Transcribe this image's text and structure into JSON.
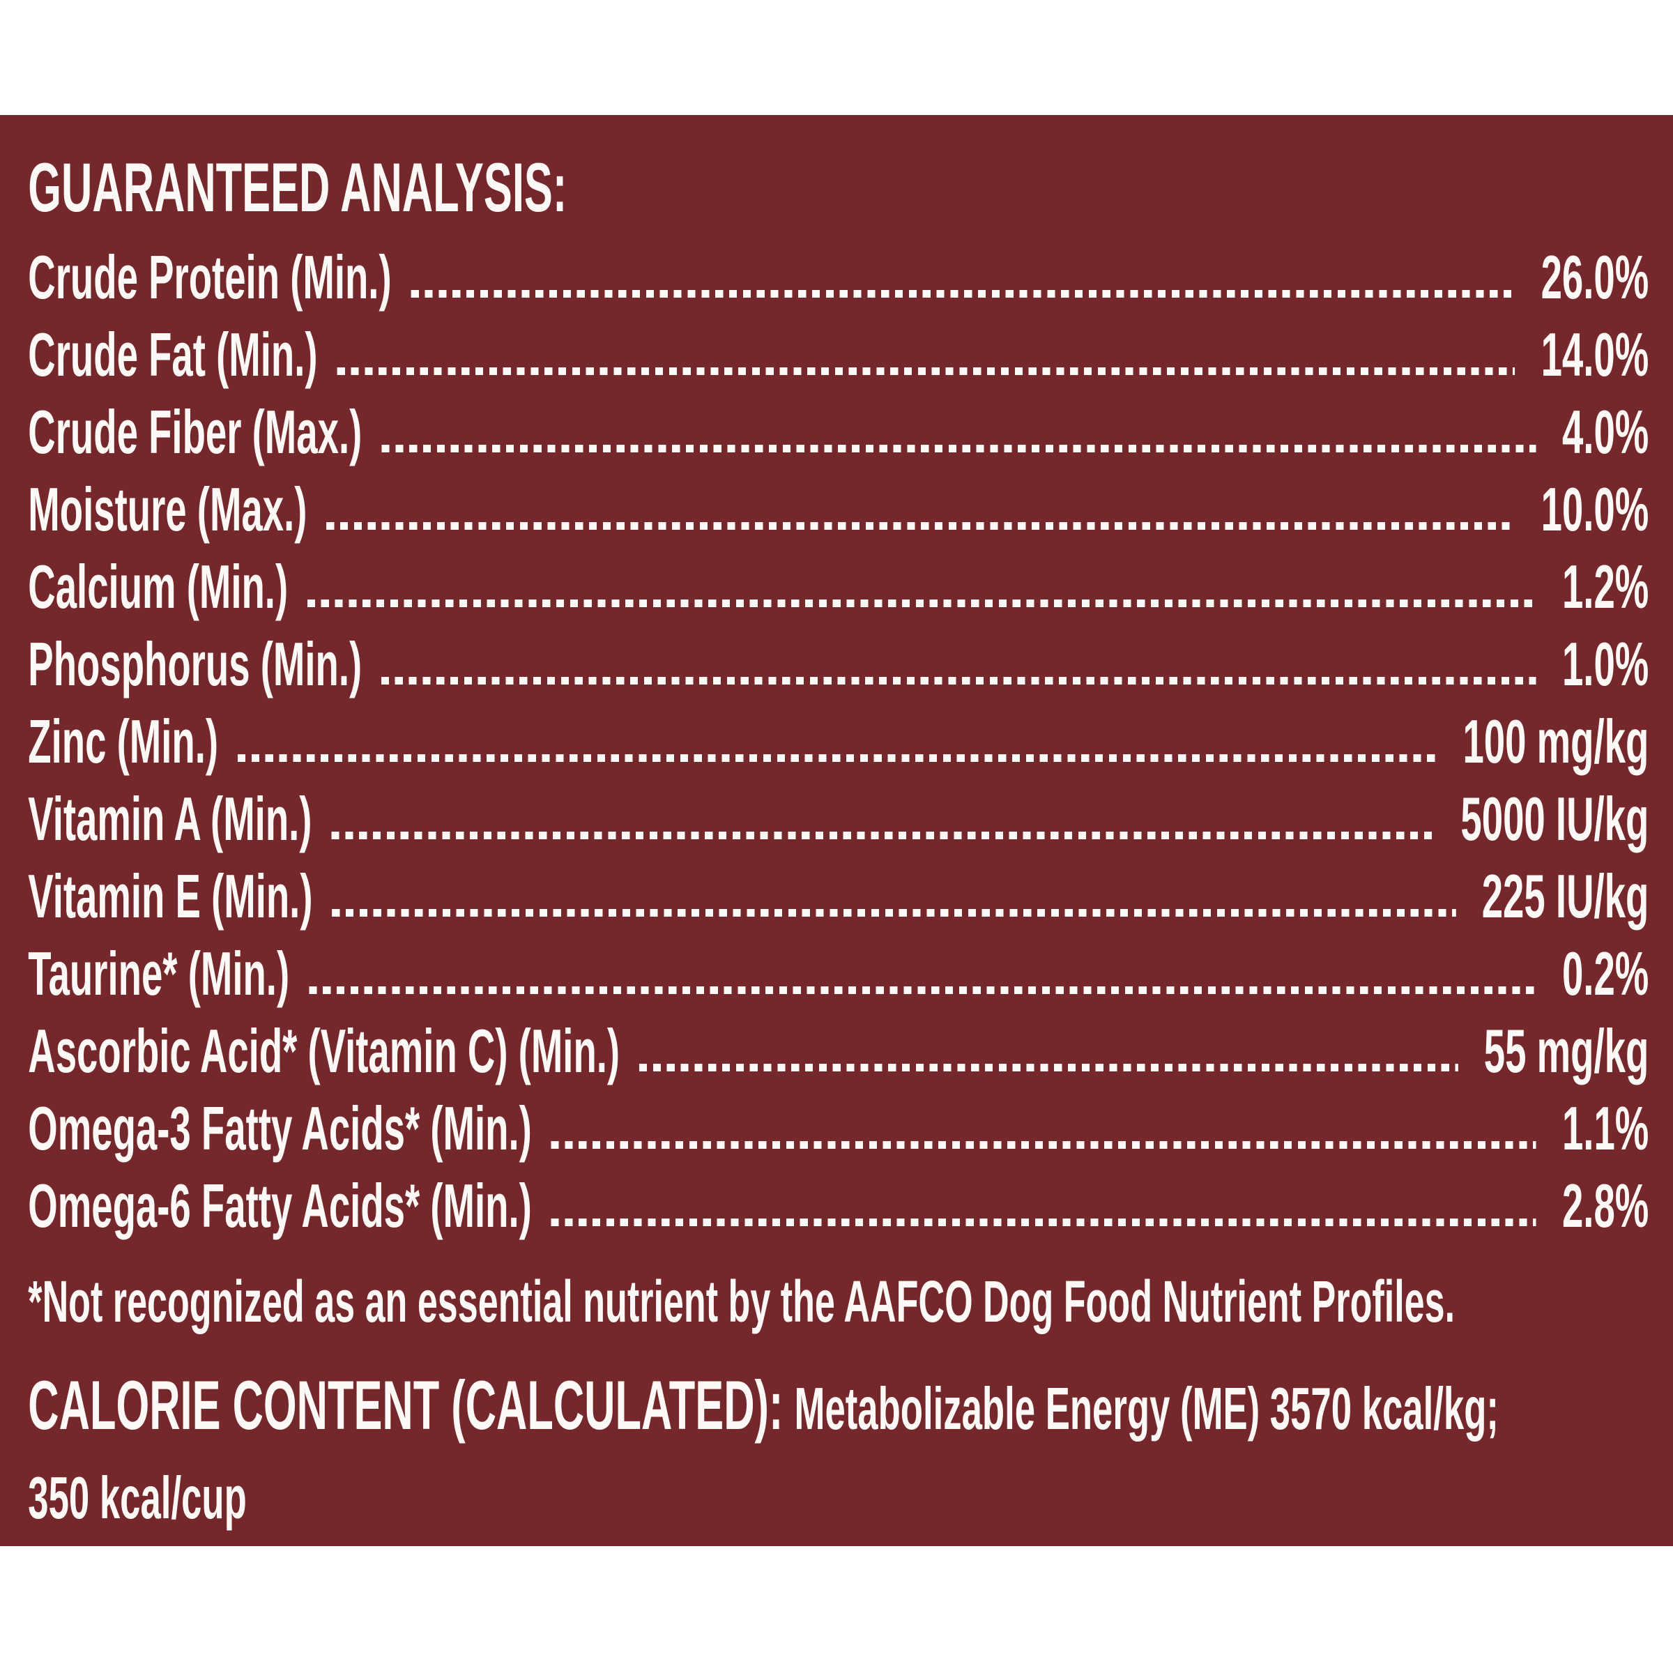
{
  "colors": {
    "page_background": "#FFFFFF",
    "panel_background": "#75282B",
    "text": "#FBF8F5"
  },
  "panel": {
    "title": "GUARANTEED ANALYSIS:",
    "rows": [
      {
        "label": "Crude Protein (Min.)",
        "value": "26.0%"
      },
      {
        "label": "Crude Fat (Min.)",
        "value": "14.0%"
      },
      {
        "label": "Crude Fiber (Max.)",
        "value": "4.0%"
      },
      {
        "label": "Moisture (Max.)",
        "value": "10.0%"
      },
      {
        "label": "Calcium (Min.)",
        "value": "1.2%"
      },
      {
        "label": "Phosphorus (Min.)",
        "value": "1.0%"
      },
      {
        "label": "Zinc (Min.)",
        "value": "100 mg/kg"
      },
      {
        "label": "Vitamin A (Min.)",
        "value": "5000 IU/kg"
      },
      {
        "label": "Vitamin E (Min.)",
        "value": "225 IU/kg"
      },
      {
        "label": "Taurine* (Min.)",
        "value": "0.2%"
      },
      {
        "label": "Ascorbic Acid* (Vitamin C) (Min.)",
        "value": "55 mg/kg"
      },
      {
        "label": "Omega-3 Fatty Acids* (Min.)",
        "value": "1.1%"
      },
      {
        "label": "Omega-6 Fatty Acids* (Min.)",
        "value": "2.8%"
      }
    ],
    "footnote": "*Not recognized as an essential nutrient by the AAFCO Dog Food Nutrient Profiles.",
    "calorie": {
      "heading": "CALORIE CONTENT (CALCULATED):",
      "line1": "Metabolizable Energy (ME) 3570 kcal/kg;",
      "line2": "350 kcal/cup"
    }
  }
}
